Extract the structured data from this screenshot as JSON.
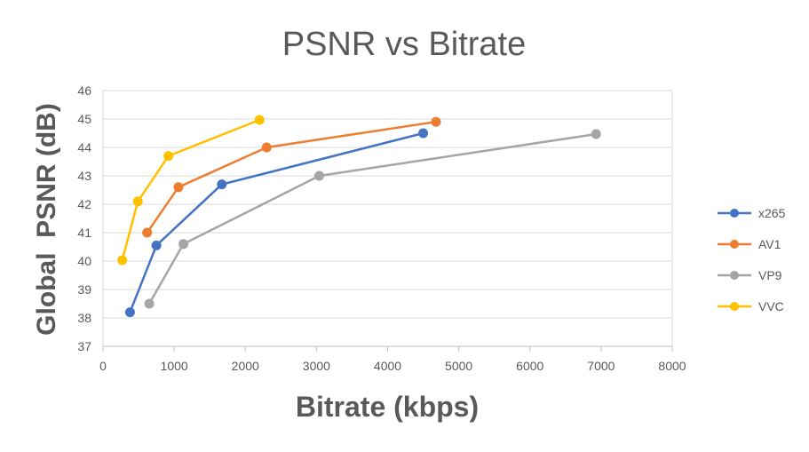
{
  "chart_data": {
    "type": "line",
    "title": "PSNR vs Bitrate",
    "xlabel": "Bitrate (kbps)",
    "ylabel": "Global  PSNR (dB)",
    "xlim": [
      0,
      8000
    ],
    "ylim": [
      37,
      46
    ],
    "x_ticks": [
      0,
      1000,
      2000,
      3000,
      4000,
      5000,
      6000,
      7000,
      8000
    ],
    "y_ticks": [
      37,
      38,
      39,
      40,
      41,
      42,
      43,
      44,
      45,
      46
    ],
    "grid": "horizontal",
    "legend_position": "right",
    "series": [
      {
        "name": "x265",
        "color": "#4472C4",
        "x": [
          380,
          750,
          1670,
          4500
        ],
        "y": [
          38.2,
          40.55,
          42.7,
          44.5
        ]
      },
      {
        "name": "AV1",
        "color": "#ED7D31",
        "x": [
          620,
          1060,
          2300,
          4680
        ],
        "y": [
          41.0,
          42.6,
          44.0,
          44.9
        ]
      },
      {
        "name": "VP9",
        "color": "#A5A5A5",
        "x": [
          650,
          1130,
          3040,
          6930
        ],
        "y": [
          38.5,
          40.6,
          43.0,
          44.47
        ]
      },
      {
        "name": "VVC",
        "color": "#FFC000",
        "x": [
          270,
          490,
          920,
          2200
        ],
        "y": [
          40.03,
          42.1,
          43.7,
          44.97
        ]
      }
    ]
  }
}
